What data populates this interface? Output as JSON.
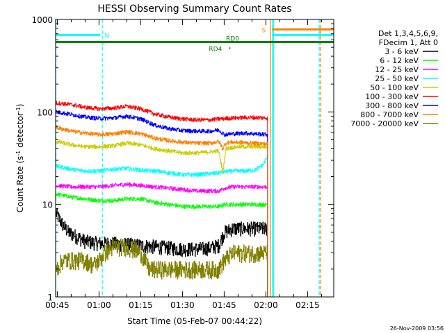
{
  "chart_data": {
    "type": "line",
    "title": "HESSI Observing Summary Count Rates",
    "xlabel": "Start Time (05-Feb-07 00:44:22)",
    "ylabel": "Count Rate (s",
    "ylabel_sup1": "-1",
    "ylabel_mid": " detector",
    "ylabel_sup2": "-1",
    "ylabel_end": ")",
    "y_scale": "log",
    "xlim": [
      44.4,
      144.4
    ],
    "ylim": [
      1,
      1000
    ],
    "x_ticks": [
      {
        "value": 45,
        "label": "00:45"
      },
      {
        "value": 60,
        "label": "01:00"
      },
      {
        "value": 75,
        "label": "01:15"
      },
      {
        "value": 90,
        "label": "01:30"
      },
      {
        "value": 105,
        "label": "01:45"
      },
      {
        "value": 120,
        "label": "02:00"
      },
      {
        "value": 135,
        "label": "02:15"
      }
    ],
    "y_ticks": [
      {
        "value": 1,
        "label": "1"
      },
      {
        "value": 10,
        "label": "10"
      },
      {
        "value": 100,
        "label": "100"
      },
      {
        "value": 1000,
        "label": "1000"
      }
    ],
    "legend": {
      "placement": "right",
      "header": [
        "Det 1,3,4,5,6,9,",
        "FDecim 1, Att 0"
      ]
    },
    "series": [
      {
        "name": "3 - 6 keV",
        "color": "#000000",
        "x": [
          44.5,
          47,
          49,
          52,
          55,
          60,
          65,
          70,
          75,
          80,
          85,
          90,
          95,
          100,
          103,
          105,
          108,
          112,
          116,
          120.6
        ],
        "values": [
          8,
          6,
          5,
          4.5,
          4,
          3.8,
          3.8,
          3.7,
          3.6,
          3.5,
          3.4,
          3.3,
          3.3,
          3.4,
          3.6,
          5,
          5.5,
          5.5,
          5.5,
          5.5
        ]
      },
      {
        "name": "6 - 12 keV",
        "color": "#00ff00",
        "x": [
          44.5,
          50,
          55,
          60,
          65,
          70,
          75,
          80,
          85,
          90,
          95,
          100,
          103,
          105,
          108,
          112,
          116,
          120.6
        ],
        "values": [
          13,
          12,
          11.5,
          11,
          11,
          11.5,
          11.5,
          10.5,
          10,
          9.5,
          9.5,
          9.5,
          9.5,
          10,
          10,
          10,
          10,
          10
        ]
      },
      {
        "name": "12 - 25 keV",
        "color": "#ff00ff",
        "x": [
          44.5,
          50,
          55,
          60,
          65,
          70,
          75,
          80,
          85,
          90,
          95,
          100,
          103,
          105,
          108,
          112,
          116,
          120.6
        ],
        "values": [
          16,
          15.5,
          15.5,
          15.5,
          16,
          16.5,
          16,
          15.5,
          15,
          14.5,
          14,
          14,
          14,
          15,
          15.5,
          15.5,
          15.5,
          15.5
        ]
      },
      {
        "name": "25 - 50 keV",
        "color": "#00ffff",
        "x": [
          44.5,
          50,
          55,
          60,
          65,
          70,
          75,
          80,
          85,
          90,
          95,
          100,
          103,
          105,
          108,
          112,
          116,
          119,
          120.6
        ],
        "values": [
          26,
          24,
          23,
          23,
          24,
          24.5,
          23.5,
          23,
          22,
          21,
          21,
          21.5,
          22,
          22.5,
          23,
          23,
          23.5,
          27,
          33
        ]
      },
      {
        "name": "50 - 100 keV",
        "color": "#cccc00",
        "x": [
          44.5,
          50,
          55,
          60,
          65,
          70,
          75,
          80,
          85,
          90,
          95,
          100,
          103,
          104.5,
          105.5,
          107,
          110,
          115,
          120.6
        ],
        "values": [
          48,
          44,
          42,
          42,
          43,
          46,
          44,
          40,
          38,
          36,
          36,
          37,
          38,
          22,
          40,
          41,
          42,
          42,
          42
        ]
      },
      {
        "name": "100 - 300 keV",
        "color": "#ff0000",
        "x": [
          44.5,
          50,
          55,
          60,
          65,
          70,
          75,
          80,
          85,
          90,
          95,
          100,
          103,
          105,
          108,
          112,
          116,
          120.6
        ],
        "values": [
          125,
          120,
          112,
          108,
          110,
          115,
          108,
          95,
          88,
          84,
          82,
          82,
          84,
          85,
          86,
          87,
          87,
          86
        ]
      },
      {
        "name": "300 - 800 keV",
        "color": "#0000ff",
        "x": [
          44.5,
          50,
          55,
          60,
          65,
          70,
          75,
          80,
          85,
          90,
          95,
          100,
          103,
          105,
          108,
          112,
          116,
          120.6
        ],
        "values": [
          100,
          94,
          88,
          85,
          86,
          90,
          84,
          72,
          66,
          63,
          62,
          62,
          64,
          57,
          58,
          59,
          58,
          57
        ]
      },
      {
        "name": "800 - 7000 keV",
        "color": "#ff7f00",
        "x": [
          44.5,
          50,
          55,
          60,
          65,
          70,
          75,
          80,
          85,
          90,
          95,
          100,
          103,
          104.5,
          105.5,
          107,
          110,
          115,
          120.6
        ],
        "values": [
          68,
          62,
          59,
          57,
          58,
          61,
          58,
          52,
          49,
          47,
          46,
          46,
          48,
          40,
          46,
          47,
          47,
          46,
          45
        ]
      },
      {
        "name": "7000 - 20000 keV",
        "color": "#808000",
        "x": [
          44.5,
          47,
          50,
          55,
          58,
          60,
          62,
          65,
          70,
          75,
          78,
          80,
          85,
          90,
          95,
          100,
          103,
          105,
          108,
          112,
          116,
          120.6
        ],
        "values": [
          2,
          2.5,
          2.5,
          2.5,
          2.2,
          2.5,
          3,
          3.5,
          3.5,
          3,
          2,
          2,
          2,
          2,
          2,
          2,
          2,
          2.5,
          3,
          3,
          3,
          3
        ]
      }
    ],
    "annotations": {
      "saa_flags": [
        {
          "label": "N",
          "color": "#00ffff",
          "x_start": 44.4,
          "x_end": 60.5,
          "value": 680
        },
        {
          "label": "S",
          "color": "#ff7f00",
          "x_start": 122.3,
          "x_end": 144.4,
          "value": 780
        },
        {
          "label": "",
          "color": "#00ffff",
          "x_start": 122.3,
          "x_end": 144.4,
          "value": 680
        }
      ],
      "decim_flags": [
        {
          "label": "RD0",
          "color": "#008000",
          "x_start": 44.4,
          "x_end": 144.4,
          "value": 570
        },
        {
          "label": "RD4",
          "color": "#008000",
          "x": 107,
          "value": 490
        }
      ],
      "vlines": [
        {
          "x": 44.5,
          "color": "#00ffff",
          "dashed": true
        },
        {
          "x": 61.2,
          "color": "#00ffff",
          "dashed": true
        },
        {
          "x": 121.7,
          "color": "#ff7f00",
          "dashed": false
        },
        {
          "x": 122.3,
          "color": "#00ffff",
          "dashed": false
        },
        {
          "x": 122.8,
          "color": "#00ffff",
          "dashed": false
        },
        {
          "x": 139.2,
          "color": "#00ffff",
          "dashed": true
        },
        {
          "x": 139.7,
          "color": "#ff7f00",
          "dashed": true
        }
      ]
    }
  },
  "footer": {
    "timestamp": "26-Nov-2009 03:56"
  }
}
